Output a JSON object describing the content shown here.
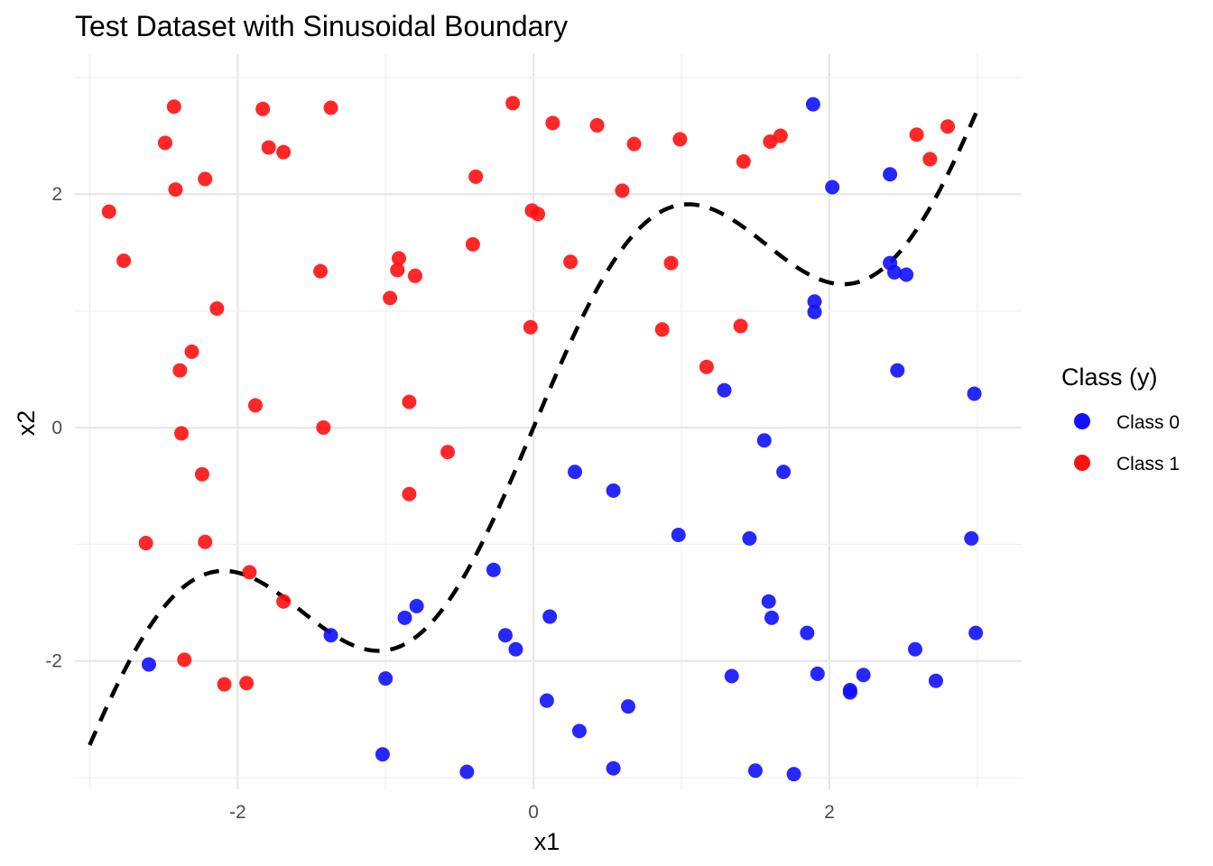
{
  "chart_data": {
    "type": "scatter",
    "title": "Test Dataset with Sinusoidal Boundary",
    "xlabel": "x1",
    "ylabel": "x2",
    "xlim": [
      -3.1,
      3.3
    ],
    "ylim": [
      -3.1,
      3.2
    ],
    "x_ticks": [
      -2,
      0,
      2
    ],
    "y_ticks": [
      -2,
      0,
      2
    ],
    "x_tick_labels": [
      "-2",
      "0",
      "2"
    ],
    "y_tick_labels": [
      "-2",
      "0",
      "2"
    ],
    "grid": true,
    "legend": {
      "title": "Class (y)",
      "position": "right",
      "entries": [
        {
          "label": "Class 0",
          "color": "#1010ff"
        },
        {
          "label": "Class 1",
          "color": "#ff1010"
        }
      ]
    },
    "boundary": {
      "style": "dashed",
      "color": "#000000",
      "formula": "x2 = x1 + sin(2*x1)",
      "x_range": [
        -3,
        3
      ]
    },
    "series": [
      {
        "name": "Class 0",
        "color": "#1010ff",
        "points": [
          [
            -2.6,
            -2.03
          ],
          [
            -1.37,
            -1.78
          ],
          [
            -1.0,
            -2.15
          ],
          [
            -1.02,
            -2.8
          ],
          [
            -0.87,
            -1.63
          ],
          [
            -0.79,
            -1.53
          ],
          [
            -0.45,
            -2.95
          ],
          [
            -0.27,
            -1.22
          ],
          [
            -0.19,
            -1.78
          ],
          [
            -0.12,
            -1.9
          ],
          [
            0.09,
            -2.34
          ],
          [
            0.11,
            -1.62
          ],
          [
            0.28,
            -0.38
          ],
          [
            0.31,
            -2.6
          ],
          [
            0.54,
            -0.54
          ],
          [
            0.54,
            -2.92
          ],
          [
            0.64,
            -2.39
          ],
          [
            0.98,
            -0.92
          ],
          [
            1.29,
            0.32
          ],
          [
            1.34,
            -2.13
          ],
          [
            1.46,
            -0.95
          ],
          [
            1.5,
            -2.94
          ],
          [
            1.56,
            -0.11
          ],
          [
            1.59,
            -1.49
          ],
          [
            1.61,
            -1.63
          ],
          [
            1.69,
            -0.38
          ],
          [
            1.76,
            -2.97
          ],
          [
            1.85,
            -1.76
          ],
          [
            1.89,
            2.77
          ],
          [
            1.9,
            1.08
          ],
          [
            1.9,
            0.99
          ],
          [
            1.92,
            -2.11
          ],
          [
            2.02,
            2.06
          ],
          [
            2.14,
            -2.25
          ],
          [
            2.14,
            -2.27
          ],
          [
            2.23,
            -2.12
          ],
          [
            2.41,
            2.17
          ],
          [
            2.41,
            1.41
          ],
          [
            2.44,
            1.33
          ],
          [
            2.46,
            0.49
          ],
          [
            2.52,
            1.31
          ],
          [
            2.58,
            -1.9
          ],
          [
            2.72,
            -2.17
          ],
          [
            2.96,
            -0.95
          ],
          [
            2.98,
            0.29
          ],
          [
            2.99,
            -1.76
          ]
        ]
      },
      {
        "name": "Class 1",
        "color": "#ff1010",
        "points": [
          [
            -2.87,
            1.85
          ],
          [
            -2.77,
            1.43
          ],
          [
            -2.62,
            -0.99
          ],
          [
            -2.49,
            2.44
          ],
          [
            -2.43,
            2.75
          ],
          [
            -2.42,
            2.04
          ],
          [
            -2.39,
            0.49
          ],
          [
            -2.38,
            -0.05
          ],
          [
            -2.36,
            -1.99
          ],
          [
            -2.31,
            0.65
          ],
          [
            -2.24,
            -0.4
          ],
          [
            -2.22,
            2.13
          ],
          [
            -2.22,
            -0.98
          ],
          [
            -2.14,
            1.02
          ],
          [
            -2.09,
            -2.2
          ],
          [
            -1.94,
            -2.19
          ],
          [
            -1.92,
            -1.24
          ],
          [
            -1.88,
            0.19
          ],
          [
            -1.83,
            2.73
          ],
          [
            -1.79,
            2.4
          ],
          [
            -1.69,
            2.36
          ],
          [
            -1.69,
            -1.49
          ],
          [
            -1.44,
            1.34
          ],
          [
            -1.42,
            0.0
          ],
          [
            -1.37,
            2.74
          ],
          [
            -0.97,
            1.11
          ],
          [
            -0.92,
            1.35
          ],
          [
            -0.91,
            1.45
          ],
          [
            -0.84,
            -0.57
          ],
          [
            -0.84,
            0.22
          ],
          [
            -0.8,
            1.3
          ],
          [
            -0.58,
            -0.21
          ],
          [
            -0.41,
            1.57
          ],
          [
            -0.39,
            2.15
          ],
          [
            -0.14,
            2.78
          ],
          [
            -0.02,
            0.86
          ],
          [
            -0.01,
            1.86
          ],
          [
            0.03,
            1.83
          ],
          [
            0.13,
            2.61
          ],
          [
            0.25,
            1.42
          ],
          [
            0.43,
            2.59
          ],
          [
            0.6,
            2.03
          ],
          [
            0.68,
            2.43
          ],
          [
            0.87,
            0.84
          ],
          [
            0.93,
            1.41
          ],
          [
            0.99,
            2.47
          ],
          [
            1.17,
            0.52
          ],
          [
            1.4,
            0.87
          ],
          [
            1.42,
            2.28
          ],
          [
            1.6,
            2.45
          ],
          [
            1.67,
            2.5
          ],
          [
            2.59,
            2.51
          ],
          [
            2.68,
            2.3
          ],
          [
            2.8,
            2.58
          ]
        ]
      }
    ]
  }
}
